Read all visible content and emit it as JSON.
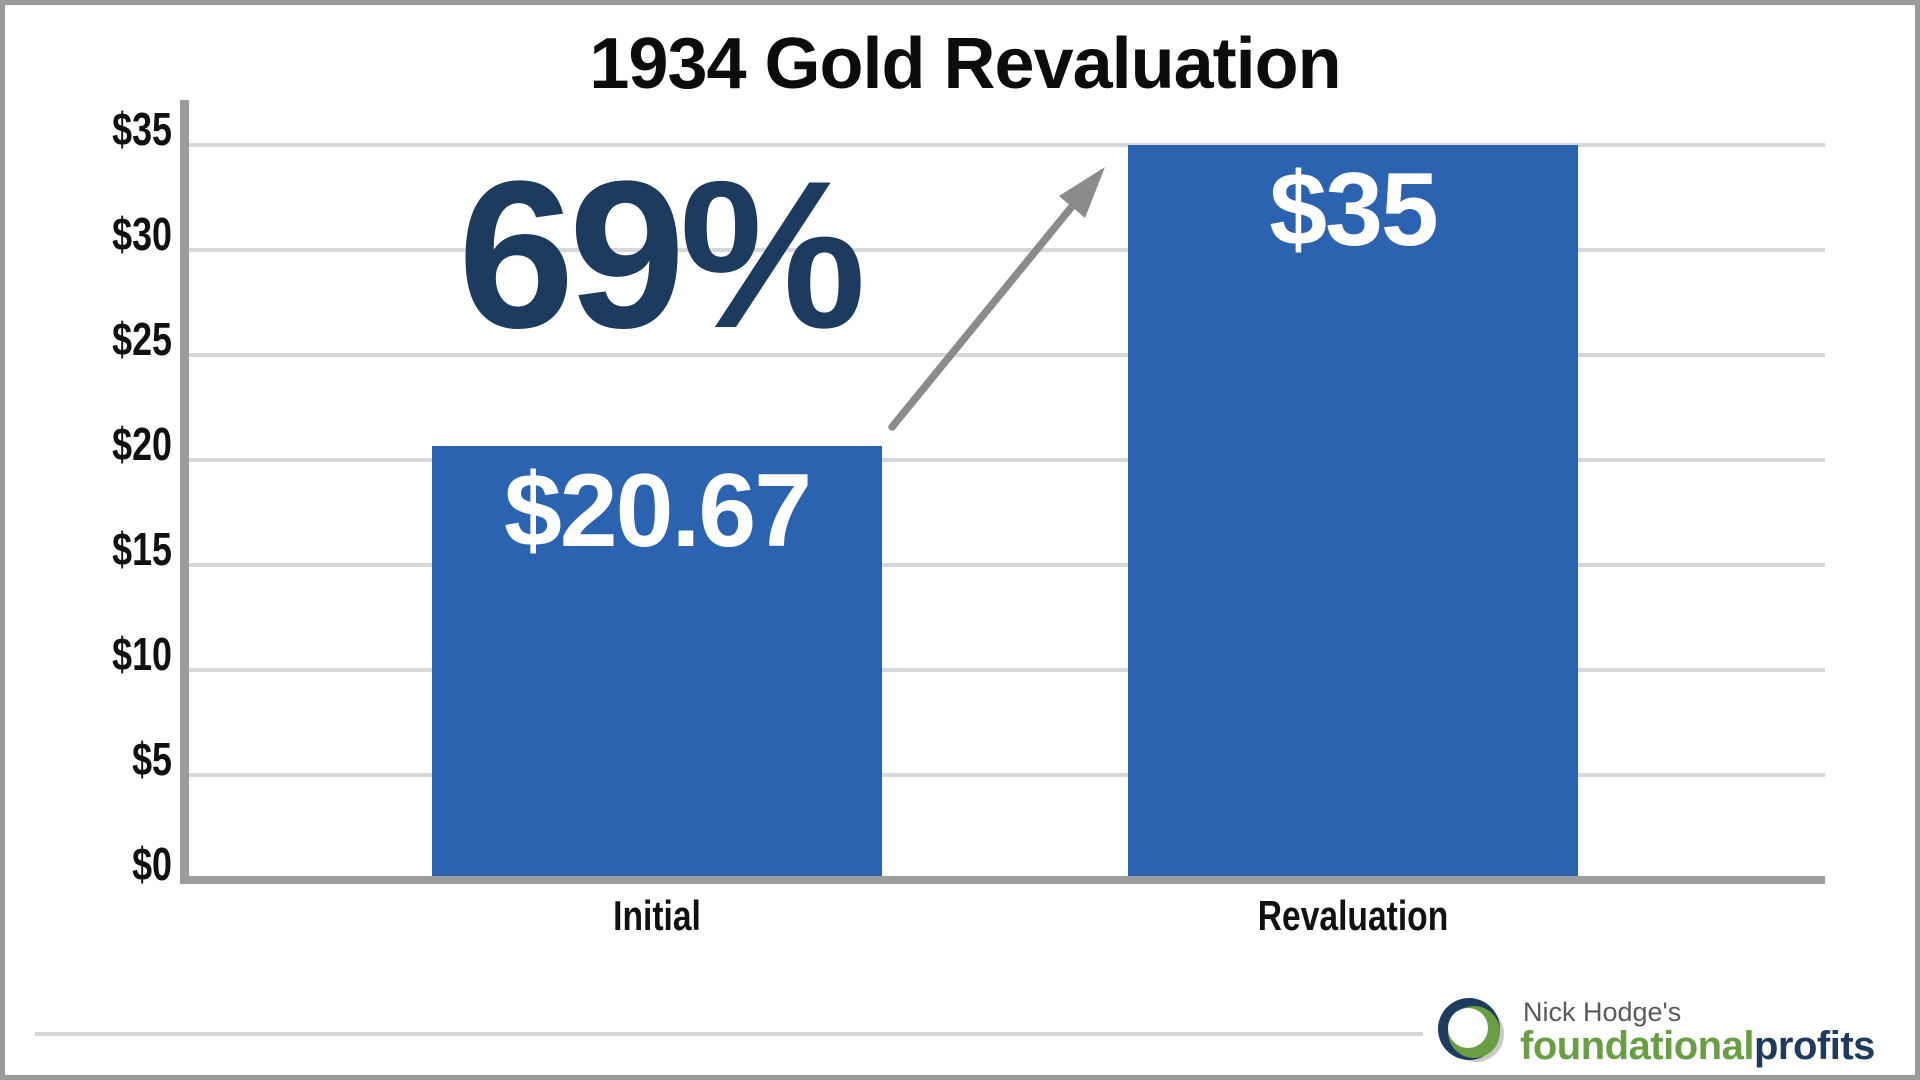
{
  "title": "1934 Gold Revaluation",
  "chart_data": {
    "type": "bar",
    "title": "1934 Gold Revaluation",
    "categories": [
      "Initial",
      "Revaluation"
    ],
    "values": [
      20.67,
      35
    ],
    "bar_labels": [
      "$20.67",
      "$35"
    ],
    "annotation": "69%",
    "y_ticks": [
      {
        "label": "$0",
        "value": 0
      },
      {
        "label": "$5",
        "value": 5
      },
      {
        "label": "$10",
        "value": 10
      },
      {
        "label": "$15",
        "value": 15
      },
      {
        "label": "$20",
        "value": 20
      },
      {
        "label": "$25",
        "value": 25
      },
      {
        "label": "$30",
        "value": 30
      },
      {
        "label": "$35",
        "value": 35
      }
    ],
    "ylim": [
      0,
      35
    ],
    "xlabel": "",
    "ylabel": "",
    "grid": "horizontal",
    "legend": "none"
  },
  "colors": {
    "bar-blue": "#2b63b1",
    "navy": "#1d3a5f",
    "brand-green": "#6a9e44",
    "text-gray": "#595a5c",
    "axis-gray": "#9c9c9c",
    "grid-gray": "#d6d9dc",
    "arrow-gray": "#8b8b8b"
  },
  "logo": {
    "owner": "Nick Hodge's",
    "brand_first": "foundational",
    "brand_second": "profits"
  }
}
